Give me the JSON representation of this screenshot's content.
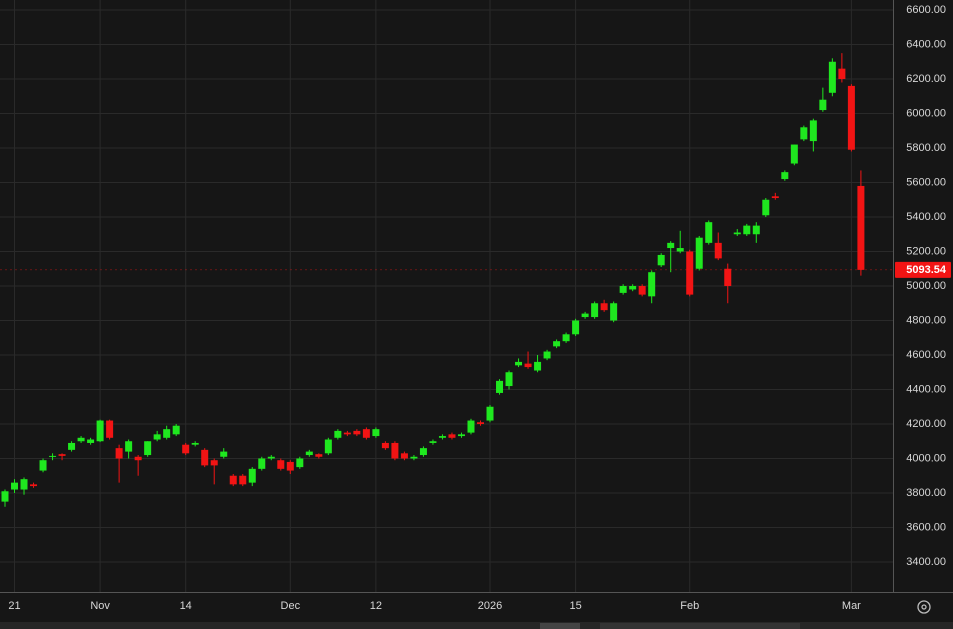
{
  "chart_data": {
    "type": "candlestick",
    "categories": [
      null,
      "21",
      null,
      null,
      null,
      null,
      null,
      null,
      null,
      null,
      "Nov",
      null,
      null,
      null,
      null,
      null,
      null,
      null,
      null,
      "14",
      null,
      null,
      null,
      null,
      null,
      null,
      null,
      null,
      null,
      null,
      "Dec",
      null,
      null,
      null,
      null,
      null,
      null,
      null,
      null,
      "12",
      null,
      null,
      null,
      null,
      null,
      null,
      null,
      null,
      null,
      null,
      null,
      "2026",
      null,
      null,
      null,
      null,
      null,
      null,
      null,
      null,
      "15",
      null,
      null,
      null,
      null,
      null,
      null,
      null,
      null,
      null,
      null,
      null,
      "Feb",
      null,
      null,
      null,
      null,
      null,
      null,
      null,
      null,
      null,
      null,
      null,
      null,
      null,
      null,
      null,
      null,
      "Mar",
      null
    ],
    "open": [
      3750,
      3820,
      3820,
      3850,
      3930,
      4010,
      4025,
      4050,
      4100,
      4090,
      4100,
      4220,
      4060,
      4040,
      4010,
      4020,
      4110,
      4120,
      4140,
      4080,
      4080,
      4050,
      3990,
      4010,
      3900,
      3900,
      3860,
      3940,
      4000,
      3990,
      3980,
      3950,
      4020,
      4025,
      4030,
      4120,
      4150,
      4160,
      4170,
      4130,
      4090,
      4090,
      4030,
      4000,
      4020,
      4090,
      4120,
      4140,
      4130,
      4150,
      4210,
      4220,
      4380,
      4420,
      4540,
      4550,
      4510,
      4580,
      4650,
      4680,
      4720,
      4820,
      4820,
      4900,
      4800,
      4960,
      4980,
      5000,
      4940,
      5120,
      5220,
      5200,
      5200,
      5100,
      5250,
      5250,
      5100,
      5300,
      5300,
      5300,
      5410,
      5520,
      5620,
      5710,
      5850,
      5840,
      6020,
      6120,
      6260,
      6160,
      5580
    ],
    "high": [
      3820,
      3880,
      3890,
      3860,
      4000,
      4030,
      4030,
      4100,
      4130,
      4120,
      4225,
      4225,
      4080,
      4110,
      4020,
      4100,
      4160,
      4190,
      4200,
      4090,
      4100,
      4060,
      4000,
      4060,
      3910,
      3910,
      3950,
      4010,
      4020,
      4000,
      3990,
      4010,
      4050,
      4030,
      4120,
      4170,
      4160,
      4170,
      4180,
      4180,
      4100,
      4100,
      4040,
      4020,
      4070,
      4110,
      4140,
      4150,
      4150,
      4230,
      4220,
      4310,
      4460,
      4510,
      4580,
      4620,
      4600,
      4630,
      4690,
      4730,
      4810,
      4850,
      4910,
      4920,
      4910,
      5010,
      5010,
      5010,
      5090,
      5190,
      5260,
      5320,
      5210,
      5290,
      5380,
      5310,
      5130,
      5330,
      5360,
      5370,
      5510,
      5540,
      5670,
      5820,
      5930,
      5970,
      6150,
      6320,
      6350,
      6170,
      5670
    ],
    "low": [
      3720,
      3800,
      3790,
      3830,
      3920,
      3990,
      3990,
      4040,
      4090,
      4080,
      4095,
      4110,
      3860,
      4000,
      3900,
      4010,
      4100,
      4110,
      4130,
      4020,
      4070,
      3950,
      3850,
      4000,
      3840,
      3840,
      3840,
      3930,
      3990,
      3930,
      3910,
      3940,
      4010,
      4000,
      4020,
      4110,
      4130,
      4130,
      4110,
      4120,
      4050,
      3990,
      3990,
      3990,
      4010,
      4080,
      4110,
      4110,
      4120,
      4140,
      4190,
      4210,
      4370,
      4400,
      4530,
      4520,
      4500,
      4570,
      4640,
      4670,
      4710,
      4810,
      4810,
      4850,
      4790,
      4950,
      4970,
      4940,
      4900,
      5110,
      5080,
      5190,
      4940,
      5090,
      5240,
      5150,
      4900,
      5290,
      5290,
      5250,
      5400,
      5500,
      5610,
      5700,
      5840,
      5780,
      6010,
      6100,
      6180,
      5780,
      5060
    ],
    "close": [
      3810,
      3860,
      3880,
      3840,
      3990,
      4015,
      4015,
      4090,
      4120,
      4110,
      4220,
      4120,
      4000,
      4100,
      3990,
      4100,
      4140,
      4170,
      4190,
      4030,
      4090,
      3960,
      3960,
      4040,
      3850,
      3850,
      3940,
      4000,
      4010,
      3940,
      3930,
      4000,
      4040,
      4010,
      4110,
      4160,
      4140,
      4140,
      4120,
      4170,
      4060,
      4000,
      4000,
      4010,
      4060,
      4100,
      4130,
      4120,
      4140,
      4220,
      4200,
      4300,
      4450,
      4500,
      4560,
      4530,
      4560,
      4620,
      4680,
      4720,
      4800,
      4840,
      4900,
      4860,
      4900,
      5000,
      5000,
      4950,
      5080,
      5180,
      5250,
      5220,
      4950,
      5280,
      5370,
      5160,
      5000,
      5310,
      5350,
      5350,
      5500,
      5510,
      5660,
      5820,
      5920,
      5960,
      6080,
      6300,
      6200,
      5790,
      5093.54
    ],
    "up_color": "#1fe81f",
    "down_color": "#f21414",
    "ylim": [
      3226,
      6658
    ],
    "yticks": [
      {
        "value": 3400,
        "label": "3400.00"
      },
      {
        "value": 3600,
        "label": "3600.00"
      },
      {
        "value": 3800,
        "label": "3800.00"
      },
      {
        "value": 4000,
        "label": "4000.00"
      },
      {
        "value": 4200,
        "label": "4200.00"
      },
      {
        "value": 4400,
        "label": "4400.00"
      },
      {
        "value": 4600,
        "label": "4600.00"
      },
      {
        "value": 4800,
        "label": "4800.00"
      },
      {
        "value": 5000,
        "label": "5000.00"
      },
      {
        "value": 5200,
        "label": "5200.00"
      },
      {
        "value": 5400,
        "label": "5400.00"
      },
      {
        "value": 5600,
        "label": "5600.00"
      },
      {
        "value": 5800,
        "label": "5800.00"
      },
      {
        "value": 6000,
        "label": "6000.00"
      },
      {
        "value": 6200,
        "label": "6200.00"
      },
      {
        "value": 6400,
        "label": "6400.00"
      },
      {
        "value": 6600,
        "label": "6600.00"
      }
    ],
    "last_price": 5093.54,
    "grid": true
  }
}
